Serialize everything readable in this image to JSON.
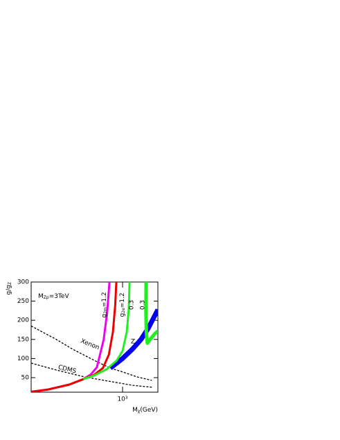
{
  "chart_data": {
    "type": "line",
    "x_label": {
      "base": "M",
      "sub": "χ",
      "tail": "(GeV)"
    },
    "y_label": {
      "base": "g/g",
      "sub": "Z"
    },
    "annotation": {
      "base": "M",
      "sub": "Zp",
      "tail": "=3TeV"
    },
    "xlog": true,
    "xlim": [
      190,
      1900
    ],
    "ylim": [
      12,
      300
    ],
    "xticks": [
      {
        "value": 1000,
        "label": "10³"
      }
    ],
    "yticks": [
      50,
      100,
      150,
      200,
      250,
      300
    ],
    "series": [
      {
        "name": "Xenon",
        "color": "#000000",
        "dashed": true,
        "x": [
          190,
          300,
          400,
          600,
          800,
          1000,
          1300,
          1700
        ],
        "values": [
          185,
          150,
          125,
          95,
          75,
          65,
          52,
          43
        ]
      },
      {
        "name": "CDMS",
        "color": "#000000",
        "dashed": true,
        "x": [
          190,
          300,
          500,
          800,
          1200,
          1700
        ],
        "values": [
          88,
          70,
          52,
          40,
          30,
          25
        ]
      },
      {
        "name": "Z",
        "color": "#0000ee",
        "x": [
          800,
          1000,
          1200,
          1400,
          1600,
          1900
        ],
        "values": [
          75,
          100,
          125,
          150,
          180,
          228
        ]
      },
      {
        "name": {
          "base": "g",
          "sub": "2m",
          "tail": "=1.2"
        },
        "color": "#ee00ee",
        "x": [
          190,
          259,
          380,
          490,
          560,
          627,
          710,
          756,
          788
        ],
        "values": [
          13,
          19,
          32,
          46,
          58,
          77,
          150,
          222,
          300
        ]
      },
      {
        "name": {
          "base": "g",
          "sub": "2e",
          "tail": "=1.2"
        },
        "color": "#ee0000",
        "x": [
          190,
          259,
          380,
          490,
          600,
          700,
          780,
          840,
          875,
          893
        ],
        "values": [
          13,
          19,
          32,
          46,
          58,
          75,
          110,
          170,
          240,
          300
        ]
      },
      {
        "name": "0.3",
        "color": "#22ee22",
        "x": [
          490,
          600,
          750,
          900,
          1000,
          1080,
          1120,
          1136
        ],
        "values": [
          46,
          56,
          72,
          95,
          120,
          170,
          230,
          300
        ]
      },
      {
        "name": "0.3",
        "color": "#22ee22",
        "x": [
          1535,
          1530,
          1540,
          1570,
          1650,
          1800,
          1900
        ],
        "values": [
          300,
          220,
          170,
          140,
          150,
          165,
          172
        ]
      }
    ]
  }
}
